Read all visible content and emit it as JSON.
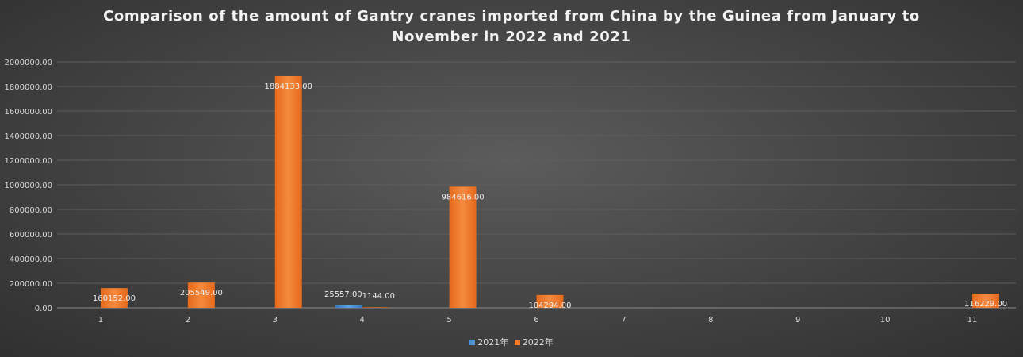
{
  "chart_data": {
    "type": "bar",
    "title_lines": [
      "Comparison of the amount of Gantry cranes imported from China by the Guinea from January to",
      "November in 2022 and 2021"
    ],
    "categories": [
      "1",
      "2",
      "3",
      "4",
      "5",
      "6",
      "7",
      "8",
      "9",
      "10",
      "11"
    ],
    "series": [
      {
        "name": "2021年",
        "color": "#4a8fd6",
        "values": [
          null,
          null,
          null,
          25557.0,
          null,
          null,
          null,
          null,
          null,
          null,
          null
        ],
        "labels": [
          null,
          null,
          null,
          "25557.00",
          null,
          null,
          null,
          null,
          null,
          null,
          null
        ]
      },
      {
        "name": "2022年",
        "color": "#ee7a2a",
        "values": [
          160152,
          205549,
          1884133,
          1144,
          984616,
          104294,
          null,
          null,
          null,
          null,
          116229
        ],
        "labels": [
          "160152.00",
          "205549.00",
          "1884133.00",
          "1144.00",
          "984616.00",
          "104294.00",
          null,
          null,
          null,
          null,
          "116229.00"
        ]
      }
    ],
    "ylim": [
      0,
      2000000
    ],
    "yticks": [
      "0.00",
      "200000.00",
      "400000.00",
      "600000.00",
      "800000.00",
      "1000000.00",
      "1200000.00",
      "1400000.00",
      "1600000.00",
      "1800000.00",
      "2000000.00"
    ],
    "xlabel": "",
    "ylabel": "",
    "grid": true,
    "legend": "bottom-center"
  }
}
